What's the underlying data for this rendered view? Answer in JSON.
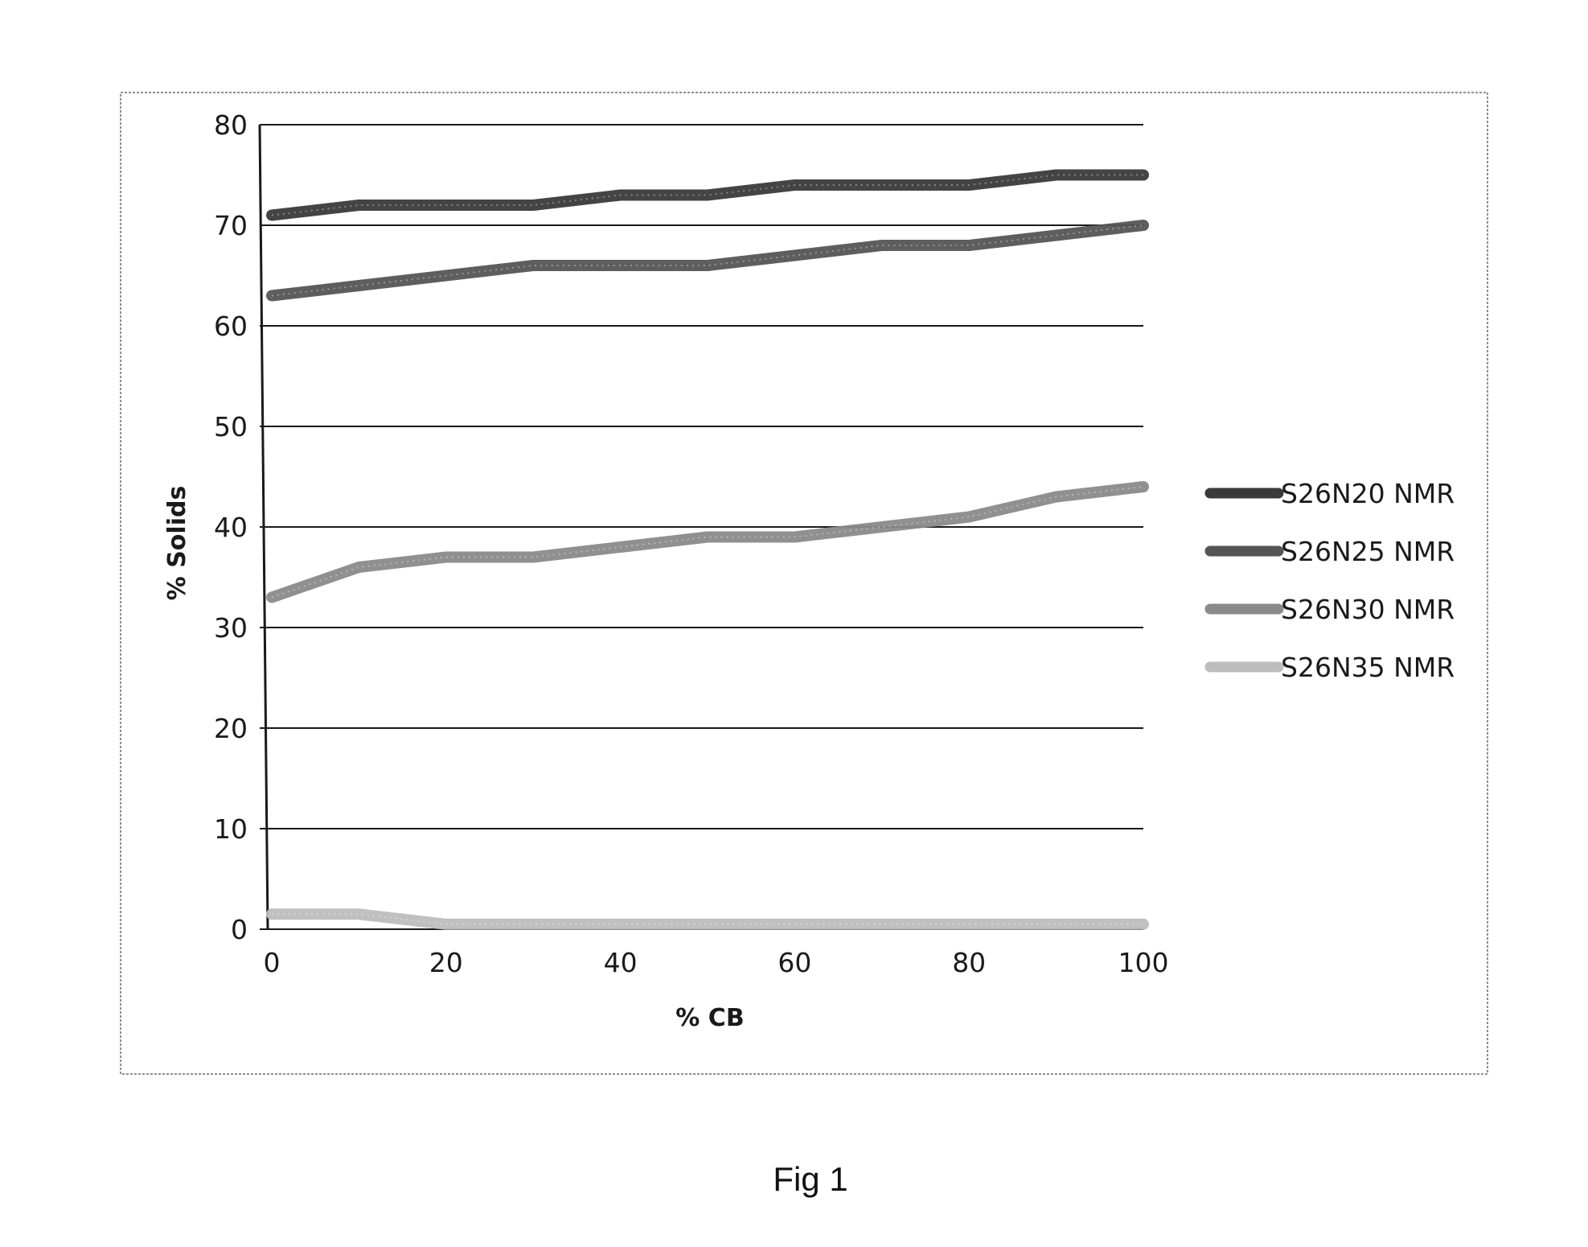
{
  "caption": "Fig 1",
  "chart_data": {
    "type": "line",
    "title": "",
    "xlabel": "% CB",
    "ylabel": "% Solids",
    "x": [
      0,
      10,
      20,
      30,
      40,
      50,
      60,
      70,
      80,
      90,
      100
    ],
    "x_ticks": [
      0,
      20,
      40,
      60,
      80,
      100
    ],
    "y_ticks": [
      0,
      10,
      20,
      30,
      40,
      50,
      60,
      70,
      80
    ],
    "xlim": [
      0,
      100
    ],
    "ylim": [
      0,
      80
    ],
    "grid": "horizontal",
    "legend_position": "right",
    "series": [
      {
        "name": "S26N20 NMR",
        "color": "#3a3a3a",
        "values": [
          71,
          72,
          72,
          72,
          73,
          73,
          74,
          74,
          74,
          75,
          75
        ]
      },
      {
        "name": "S26N25 NMR",
        "color": "#555555",
        "values": [
          63,
          64,
          65,
          66,
          66,
          66,
          67,
          68,
          68,
          69,
          70
        ]
      },
      {
        "name": "S26N30 NMR",
        "color": "#8a8a8a",
        "values": [
          33,
          36,
          37,
          37,
          38,
          39,
          39,
          40,
          41,
          43,
          44
        ]
      },
      {
        "name": "S26N35 NMR",
        "color": "#bdbdbd",
        "values": [
          1.5,
          1.5,
          0.5,
          0.5,
          0.5,
          0.5,
          0.5,
          0.5,
          0.5,
          0.5,
          0.5
        ]
      }
    ]
  }
}
